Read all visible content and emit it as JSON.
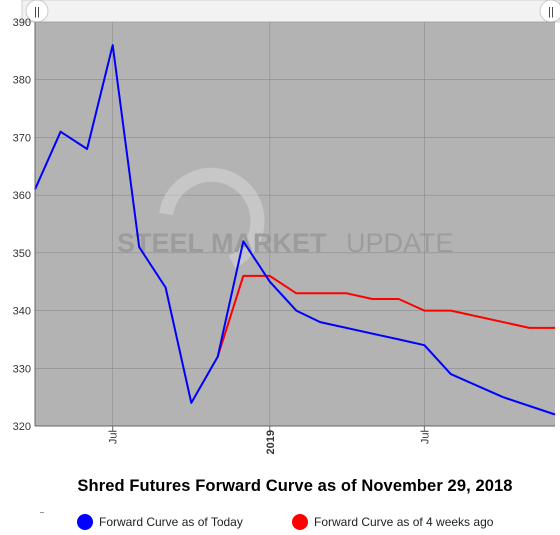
{
  "chart_data": {
    "type": "line",
    "title": "Shred Futures Forward Curve as of November 29, 2018",
    "x_domain": [
      "2018-04-01",
      "2019-12-01"
    ],
    "ylim": [
      320,
      390
    ],
    "yticks": [
      320,
      330,
      340,
      350,
      360,
      370,
      380,
      390
    ],
    "xticks": [
      {
        "date": "2018-07-01",
        "label": "Jul",
        "bold": false
      },
      {
        "date": "2019-01-01",
        "label": "2019",
        "bold": true
      },
      {
        "date": "2019-07-01",
        "label": "Jul",
        "bold": false
      }
    ],
    "grid": true,
    "series": [
      {
        "name": "Forward Curve as of Today",
        "color": "#0000ff",
        "points": [
          [
            "2018-04-01",
            361
          ],
          [
            "2018-05-01",
            371
          ],
          [
            "2018-06-01",
            368
          ],
          [
            "2018-07-01",
            386
          ],
          [
            "2018-08-01",
            351
          ],
          [
            "2018-09-01",
            344
          ],
          [
            "2018-10-01",
            324
          ],
          [
            "2018-11-01",
            332
          ],
          [
            "2018-12-01",
            352
          ],
          [
            "2019-01-01",
            345
          ],
          [
            "2019-02-01",
            340
          ],
          [
            "2019-03-01",
            338
          ],
          [
            "2019-06-01",
            335
          ],
          [
            "2019-07-01",
            334
          ],
          [
            "2019-08-01",
            329
          ],
          [
            "2019-10-01",
            325
          ],
          [
            "2019-12-01",
            322
          ]
        ]
      },
      {
        "name": "Forward Curve as of 4 weeks ago",
        "color": "#ff0000",
        "points": [
          [
            "2018-11-01",
            332
          ],
          [
            "2018-12-01",
            346
          ],
          [
            "2019-01-01",
            346
          ],
          [
            "2019-02-01",
            343
          ],
          [
            "2019-04-01",
            343
          ],
          [
            "2019-05-01",
            342
          ],
          [
            "2019-06-01",
            342
          ],
          [
            "2019-07-01",
            340
          ],
          [
            "2019-08-01",
            340
          ],
          [
            "2019-11-01",
            337
          ],
          [
            "2019-12-01",
            337
          ]
        ]
      }
    ]
  },
  "watermark": {
    "bold": "STEEL MARKET",
    "light": "UPDATE"
  },
  "legend": [
    {
      "label": "Forward Curve as of Today",
      "color": "#0000ff"
    },
    {
      "label": "Forward Curve as of 4 weeks ago",
      "color": "#ff0000"
    }
  ],
  "navigator": {
    "left_handle": "||",
    "right_handle": "||"
  }
}
